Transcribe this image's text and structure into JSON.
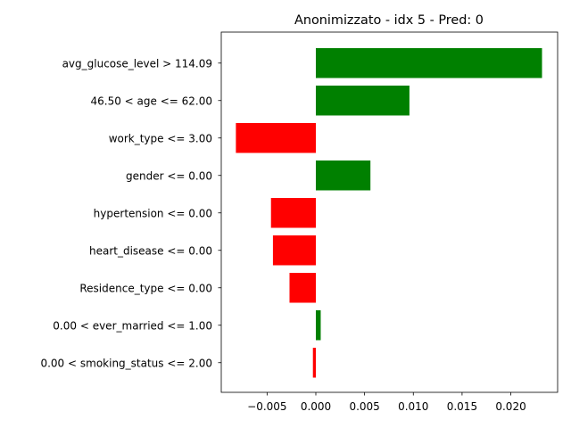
{
  "chart_data": {
    "type": "bar",
    "orientation": "horizontal",
    "title": "Anonimizzato - idx 5 - Pred: 0",
    "xlabel": "",
    "ylabel": "",
    "xlim": [
      -0.0097,
      0.0248
    ],
    "xticks": [
      -0.005,
      0.0,
      0.005,
      0.01,
      0.015,
      0.02
    ],
    "xtick_labels": [
      "−0.005",
      "0.000",
      "0.005",
      "0.010",
      "0.015",
      "0.020"
    ],
    "categories": [
      "avg_glucose_level > 114.09",
      "46.50 < age <= 62.00",
      "work_type <= 3.00",
      "gender <= 0.00",
      "hypertension <= 0.00",
      "heart_disease <= 0.00",
      "Residence_type <= 0.00",
      "0.00 < ever_married <= 1.00",
      "0.00 < smoking_status <= 2.00"
    ],
    "values": [
      0.0232,
      0.0096,
      -0.0082,
      0.0056,
      -0.0046,
      -0.0044,
      -0.0027,
      0.0005,
      -0.0003
    ],
    "grid": false,
    "colors": {
      "positive": "#008000",
      "negative": "#ff0000",
      "axis": "#000000"
    }
  }
}
